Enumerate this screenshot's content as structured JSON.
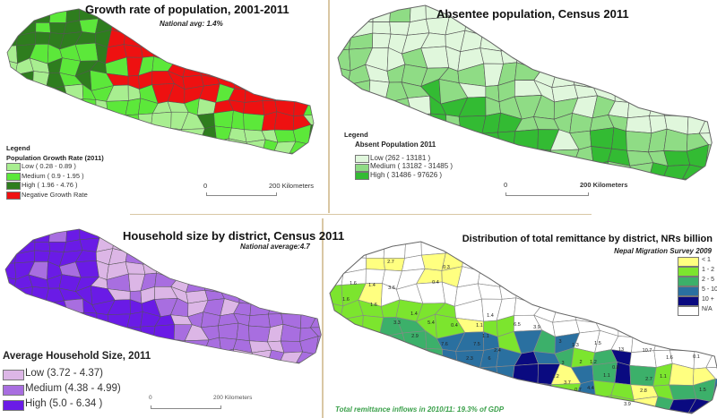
{
  "maps": {
    "growth": {
      "title": "Growth rate of population, 2001-2011",
      "subtitle": "National avg: 1.4%",
      "legend_heading": "Legend",
      "legend_title": "Population Growth Rate (2011)",
      "legend": [
        {
          "label": "Low ( 0.28 - 0.89 )",
          "color": "#a8ee90"
        },
        {
          "label": "Medium ( 0.9 - 1.95 )",
          "color": "#5ce83a"
        },
        {
          "label": "High ( 1.96 - 4.76 )",
          "color": "#2e7d1e"
        },
        {
          "label": "Negative Growth Rate",
          "color": "#ee1111"
        }
      ],
      "scale_start": "0",
      "scale_end": "200 Kilometers"
    },
    "absentee": {
      "title": "Absentee population, Census 2011",
      "legend_heading": "Legend",
      "legend_title": "Absent Population 2011",
      "legend": [
        {
          "label": "Low (262 - 13181 )",
          "color": "#e0f7dc"
        },
        {
          "label": "Medium ( 13182 - 31485 )",
          "color": "#8fdc85"
        },
        {
          "label": "High ( 31486 - 97626 )",
          "color": "#33bb33"
        }
      ],
      "scale_start": "0",
      "scale_end": "200 Kilometers"
    },
    "household": {
      "title": "Household size by district, Census 2011",
      "subtitle": "National average:4.7",
      "legend_title": "Average Household Size, 2011",
      "legend": [
        {
          "label": "Low (3.72 - 4.37)",
          "color": "#dcb6e6"
        },
        {
          "label": "Medium (4.38 -  4.99)",
          "color": "#a86ee0"
        },
        {
          "label": "High (5.0 - 6.34 )",
          "color": "#6a1be6"
        }
      ],
      "scale_start": "0",
      "scale_end": "200 Kilometers"
    },
    "remittance": {
      "title": "Distribution of total remittance by district, NRs billion",
      "subtitle": "Nepal Migration Survey 2009",
      "legend": [
        {
          "label": "< 1",
          "color": "#ffff80"
        },
        {
          "label": "1 - 2",
          "color": "#7ce52e"
        },
        {
          "label": "2 - 5",
          "color": "#3cb06a"
        },
        {
          "label": "5 - 10",
          "color": "#2a70a0"
        },
        {
          "label": "10 +",
          "color": "#0a0a80"
        },
        {
          "label": "N/A",
          "color": "#ffffff"
        }
      ],
      "district_values": [
        "2.7",
        "0.3",
        "0.4",
        "1.6",
        "1.4",
        "3.6",
        "1.6",
        "1.6",
        "1.4",
        "5.4",
        "0.4",
        "3.3",
        "2.9",
        "7.6",
        "7.5",
        "2.3",
        "6",
        "1.4",
        "1.1",
        "1.1",
        "6.5",
        "2.4",
        "3.9",
        "3",
        "1.3",
        "1.5",
        "13",
        "10.7",
        "1.6",
        "0.1",
        "3",
        "2",
        "1.2",
        "0.8",
        "1.2",
        "3.7",
        "1.1",
        "2.7",
        "1.1",
        "0.7",
        "4.4",
        "3.9",
        "2.8",
        "1.5"
      ],
      "footnote": "Total remittance inflows in 2010/11: 19.3% of GDP"
    }
  }
}
